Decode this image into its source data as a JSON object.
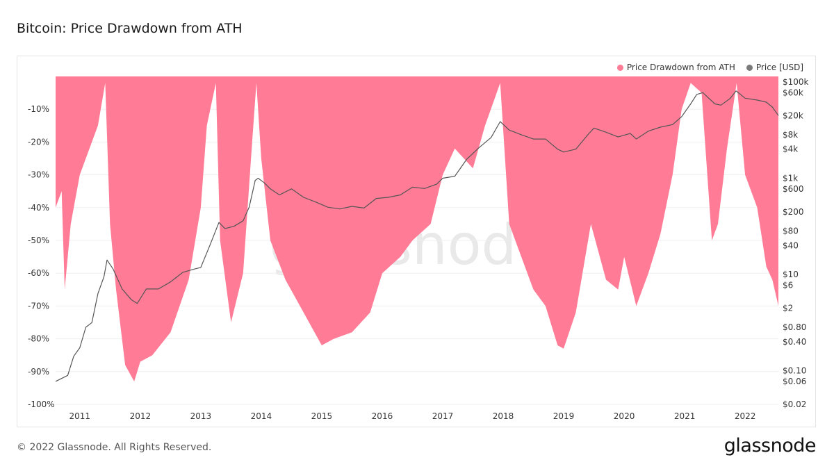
{
  "page": {
    "title": "Bitcoin: Price Drawdown from ATH",
    "copyright": "© 2022 Glassnode. All Rights Reserved.",
    "brand": "glassnode",
    "watermark": "glassnode"
  },
  "chart_data": {
    "type": "area",
    "title": "Bitcoin: Price Drawdown from ATH",
    "legend_position": "top-right",
    "grid": true,
    "x_range": [
      2010.6,
      2022.55
    ],
    "x_ticks": [
      "2011",
      "2012",
      "2013",
      "2014",
      "2015",
      "2016",
      "2017",
      "2018",
      "2019",
      "2020",
      "2021",
      "2022"
    ],
    "y_left": {
      "ylim": [
        -100,
        0
      ],
      "ticks": [
        -10,
        -20,
        -30,
        -40,
        -50,
        -60,
        -70,
        -80,
        -90,
        -100
      ],
      "tick_labels": [
        "-10%",
        "-20%",
        "-30%",
        "-40%",
        "-50%",
        "-60%",
        "-70%",
        "-80%",
        "-90%",
        "-100%"
      ]
    },
    "y_right": {
      "scale": "log",
      "ylim": [
        0.02,
        130000
      ],
      "ticks": [
        100000,
        60000,
        20000,
        8000,
        4000,
        1000,
        600,
        200,
        80,
        40,
        10,
        6,
        2,
        0.8,
        0.4,
        0.1,
        0.06,
        0.02
      ],
      "tick_labels": [
        "$100k",
        "$60k",
        "$20k",
        "$8k",
        "$4k",
        "$1k",
        "$600",
        "$200",
        "$80",
        "$40",
        "$10",
        "$6",
        "$2",
        "$0.80",
        "$0.40",
        "$0.10",
        "$0.06",
        "$0.02"
      ]
    },
    "series": [
      {
        "name": "Price Drawdown from ATH",
        "color": "#ff7b96",
        "axis": "left",
        "x": [
          2010.6,
          2010.7,
          2010.75,
          2010.85,
          2011.0,
          2011.2,
          2011.3,
          2011.42,
          2011.5,
          2011.6,
          2011.75,
          2011.9,
          2012.0,
          2012.2,
          2012.5,
          2012.8,
          2013.0,
          2013.1,
          2013.25,
          2013.32,
          2013.5,
          2013.7,
          2013.85,
          2013.92,
          2014.0,
          2014.15,
          2014.4,
          2014.7,
          2015.0,
          2015.2,
          2015.5,
          2015.8,
          2016.0,
          2016.3,
          2016.5,
          2016.8,
          2017.0,
          2017.2,
          2017.5,
          2017.7,
          2017.95,
          2018.1,
          2018.3,
          2018.5,
          2018.7,
          2018.9,
          2019.0,
          2019.2,
          2019.45,
          2019.7,
          2019.9,
          2020.0,
          2020.2,
          2020.4,
          2020.6,
          2020.8,
          2020.95,
          2021.1,
          2021.28,
          2021.45,
          2021.55,
          2021.7,
          2021.86,
          2022.0,
          2022.2,
          2022.35,
          2022.45,
          2022.55
        ],
        "values": [
          -40,
          -35,
          -65,
          -45,
          -30,
          -20,
          -15,
          -2,
          -45,
          -65,
          -88,
          -93,
          -87,
          -85,
          -78,
          -62,
          -40,
          -15,
          -2,
          -50,
          -75,
          -60,
          -20,
          -2,
          -25,
          -50,
          -62,
          -72,
          -82,
          -80,
          -78,
          -72,
          -60,
          -55,
          -50,
          -45,
          -30,
          -22,
          -28,
          -15,
          -2,
          -45,
          -55,
          -65,
          -70,
          -82,
          -83,
          -72,
          -45,
          -62,
          -65,
          -55,
          -70,
          -60,
          -48,
          -30,
          -10,
          -2,
          -5,
          -50,
          -45,
          -22,
          -2,
          -30,
          -40,
          -58,
          -62,
          -70
        ]
      },
      {
        "name": "Price [USD]",
        "color": "#7a7a7a",
        "axis": "right",
        "x": [
          2010.6,
          2010.8,
          2010.9,
          2011.0,
          2011.1,
          2011.2,
          2011.3,
          2011.4,
          2011.45,
          2011.55,
          2011.7,
          2011.85,
          2011.95,
          2012.1,
          2012.3,
          2012.5,
          2012.7,
          2012.9,
          2013.0,
          2013.15,
          2013.3,
          2013.4,
          2013.55,
          2013.7,
          2013.8,
          2013.9,
          2013.95,
          2014.05,
          2014.15,
          2014.3,
          2014.5,
          2014.7,
          2014.9,
          2015.1,
          2015.3,
          2015.5,
          2015.7,
          2015.9,
          2016.1,
          2016.3,
          2016.5,
          2016.7,
          2016.9,
          2017.0,
          2017.2,
          2017.4,
          2017.6,
          2017.8,
          2017.95,
          2018.1,
          2018.3,
          2018.5,
          2018.7,
          2018.9,
          2019.0,
          2019.2,
          2019.4,
          2019.5,
          2019.7,
          2019.9,
          2020.1,
          2020.2,
          2020.4,
          2020.6,
          2020.8,
          2020.95,
          2021.1,
          2021.2,
          2021.3,
          2021.5,
          2021.6,
          2021.75,
          2021.85,
          2022.0,
          2022.2,
          2022.35,
          2022.45,
          2022.55
        ],
        "values": [
          0.06,
          0.08,
          0.2,
          0.3,
          0.8,
          1,
          4,
          9,
          20,
          13,
          5,
          3,
          2.5,
          5,
          5,
          7,
          11,
          13,
          14,
          40,
          120,
          90,
          100,
          130,
          250,
          900,
          1000,
          800,
          600,
          450,
          600,
          400,
          320,
          250,
          230,
          260,
          240,
          380,
          400,
          450,
          650,
          610,
          750,
          1000,
          1100,
          2500,
          4300,
          7000,
          15000,
          10000,
          8000,
          6500,
          6500,
          4000,
          3500,
          4000,
          8000,
          11000,
          9000,
          7200,
          8500,
          6500,
          9500,
          11500,
          13000,
          19000,
          35000,
          55000,
          60000,
          35000,
          33000,
          45000,
          65000,
          46000,
          42000,
          38000,
          30000,
          20000
        ]
      }
    ]
  }
}
